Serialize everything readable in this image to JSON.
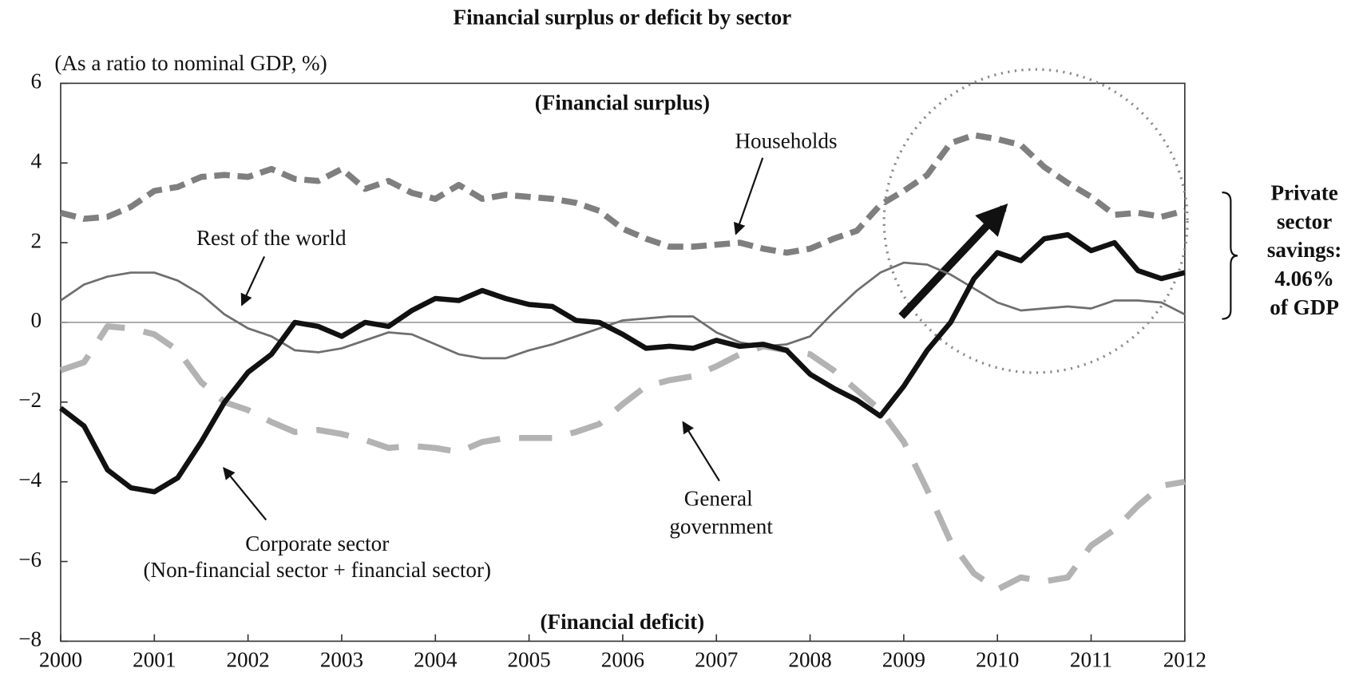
{
  "chart_data": {
    "type": "line",
    "title": "Financial surplus or deficit by sector",
    "y_label": "(As a ratio to nominal GDP, %)",
    "x": [
      2000,
      2000.25,
      2000.5,
      2000.75,
      2001,
      2001.25,
      2001.5,
      2001.75,
      2002,
      2002.25,
      2002.5,
      2002.75,
      2003,
      2003.25,
      2003.5,
      2003.75,
      2004,
      2004.25,
      2004.5,
      2004.75,
      2005,
      2005.25,
      2005.5,
      2005.75,
      2006,
      2006.25,
      2006.5,
      2006.75,
      2007,
      2007.25,
      2007.5,
      2007.75,
      2008,
      2008.25,
      2008.5,
      2008.75,
      2009,
      2009.25,
      2009.5,
      2009.75,
      2010,
      2010.25,
      2010.5,
      2010.75,
      2011,
      2011.25,
      2011.5,
      2011.75,
      2012
    ],
    "xlim": [
      2000,
      2012
    ],
    "xticks": [
      2000,
      2001,
      2002,
      2003,
      2004,
      2005,
      2006,
      2007,
      2008,
      2009,
      2010,
      2011,
      2012
    ],
    "ylim": [
      -8,
      6
    ],
    "yticks": [
      {
        "value": -8,
        "label": "−8"
      },
      {
        "value": -6,
        "label": "−6"
      },
      {
        "value": -4,
        "label": "−4"
      },
      {
        "value": -2,
        "label": "−2"
      },
      0,
      2,
      4,
      6
    ],
    "series": [
      {
        "name": "Households",
        "color": "#7f7f7f",
        "values": [
          2.75,
          2.6,
          2.65,
          2.9,
          3.3,
          3.4,
          3.65,
          3.7,
          3.65,
          3.85,
          3.6,
          3.55,
          3.85,
          3.35,
          3.55,
          3.25,
          3.1,
          3.45,
          3.1,
          3.2,
          3.15,
          3.1,
          3.0,
          2.8,
          2.35,
          2.1,
          1.9,
          1.9,
          1.95,
          2.0,
          1.85,
          1.75,
          1.85,
          2.1,
          2.3,
          2.95,
          3.3,
          3.7,
          4.5,
          4.7,
          4.6,
          4.45,
          3.9,
          3.5,
          3.15,
          2.7,
          2.75,
          2.65,
          2.8
        ]
      },
      {
        "name": "Rest of the world",
        "color": "#6e6e6e",
        "values": [
          0.55,
          0.95,
          1.15,
          1.25,
          1.25,
          1.05,
          0.7,
          0.2,
          -0.15,
          -0.35,
          -0.7,
          -0.75,
          -0.65,
          -0.45,
          -0.25,
          -0.3,
          -0.55,
          -0.8,
          -0.9,
          -0.9,
          -0.7,
          -0.55,
          -0.35,
          -0.15,
          0.05,
          0.1,
          0.15,
          0.15,
          -0.25,
          -0.5,
          -0.6,
          -0.55,
          -0.35,
          0.25,
          0.8,
          1.25,
          1.5,
          1.45,
          1.2,
          0.85,
          0.5,
          0.3,
          0.35,
          0.4,
          0.35,
          0.55,
          0.55,
          0.5,
          0.2
        ]
      },
      {
        "name": "Corporate sector",
        "color": "#111111",
        "values": [
          -2.15,
          -2.6,
          -3.7,
          -4.15,
          -4.25,
          -3.9,
          -3.0,
          -2.0,
          -1.25,
          -0.8,
          0.0,
          -0.1,
          -0.35,
          0.0,
          -0.1,
          0.3,
          0.6,
          0.55,
          0.8,
          0.6,
          0.45,
          0.4,
          0.05,
          0.0,
          -0.3,
          -0.65,
          -0.6,
          -0.65,
          -0.45,
          -0.6,
          -0.55,
          -0.7,
          -1.3,
          -1.65,
          -1.95,
          -2.35,
          -1.6,
          -0.7,
          0.0,
          1.1,
          1.75,
          1.55,
          2.1,
          2.2,
          1.8,
          2.0,
          1.3,
          1.1,
          1.25
        ]
      },
      {
        "name": "General government",
        "color": "#b3b3b3",
        "values": [
          -1.2,
          -1.0,
          -0.1,
          -0.15,
          -0.3,
          -0.7,
          -1.5,
          -2.0,
          -2.2,
          -2.5,
          -2.75,
          -2.7,
          -2.8,
          -2.95,
          -3.15,
          -3.1,
          -3.15,
          -3.25,
          -3.0,
          -2.9,
          -2.9,
          -2.9,
          -2.75,
          -2.55,
          -2.05,
          -1.6,
          -1.45,
          -1.35,
          -1.1,
          -0.8,
          -0.6,
          -0.7,
          -0.8,
          -1.2,
          -1.7,
          -2.2,
          -3.0,
          -4.2,
          -5.5,
          -6.3,
          -6.7,
          -6.4,
          -6.5,
          -6.4,
          -5.6,
          -5.2,
          -4.6,
          -4.1,
          -4.0
        ]
      }
    ],
    "annotations": [
      "(Financial surplus)",
      "(Financial deficit)",
      "(Non-financial sector + financial sector)"
    ],
    "side_note": [
      "Private",
      "sector",
      "savings:",
      "4.06%",
      "of GDP"
    ]
  }
}
